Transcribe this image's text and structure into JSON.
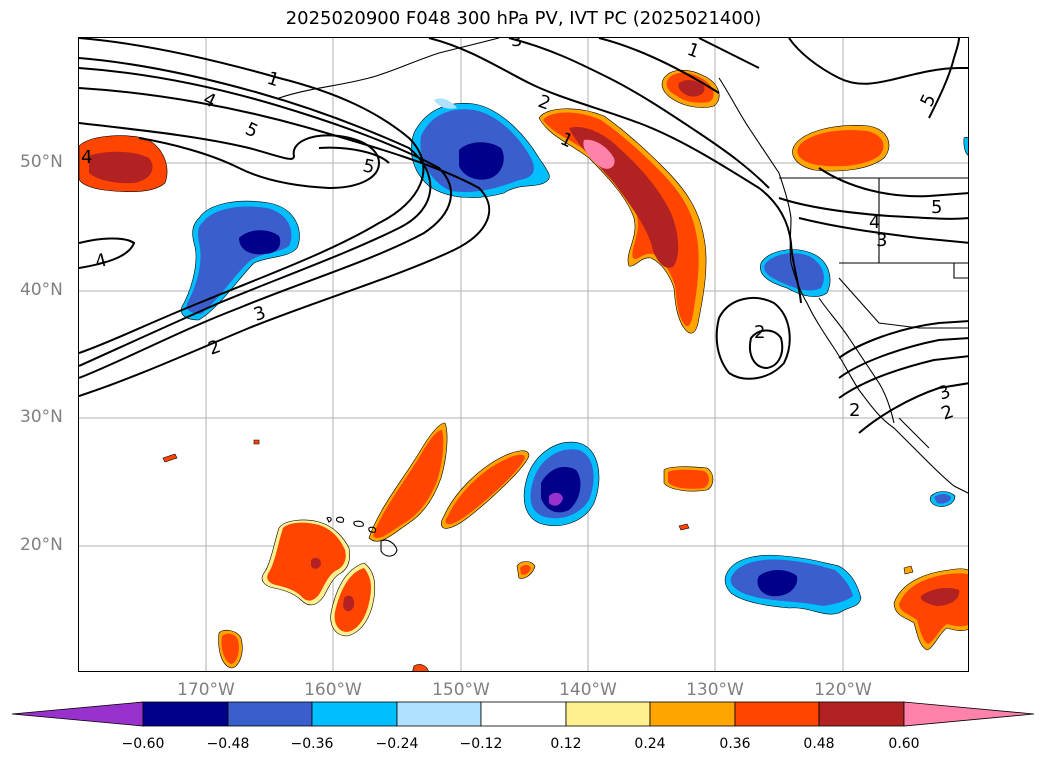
{
  "title": "2025020900 F048 300 hPa PV, IVT PC (2025021400)",
  "lat_labels": [
    "50°N",
    "40°N",
    "30°N",
    "20°N"
  ],
  "lon_labels": [
    "170°W",
    "160°W",
    "150°W",
    "140°W",
    "130°W",
    "120°W"
  ],
  "colorbar": {
    "ticks": [
      "−0.60",
      "−0.48",
      "−0.36",
      "−0.24",
      "−0.12",
      "0.12",
      "0.24",
      "0.36",
      "0.48",
      "0.60"
    ],
    "colors": [
      "#9932cc",
      "#00008b",
      "#3a5fcd",
      "#00bfff",
      "#b0e2ff",
      "#ffffff",
      "#fff08f",
      "#ffa500",
      "#ff4500",
      "#b22222",
      "#ff82ab"
    ]
  },
  "contour_labels": [
    "1",
    "4",
    "5",
    "5",
    "3",
    "2",
    "4",
    "2",
    "1",
    "3",
    "1",
    "2",
    "5",
    "4",
    "3",
    "5",
    "2",
    "3",
    "2",
    "4"
  ],
  "map_region": {
    "lon_min": -180,
    "lon_max": -110,
    "lat_min": 10,
    "lat_max": 60,
    "gridlines": true
  },
  "colors": {
    "contour": "#000000",
    "grid": "#b0b0b0",
    "tick_text": "#808080"
  }
}
